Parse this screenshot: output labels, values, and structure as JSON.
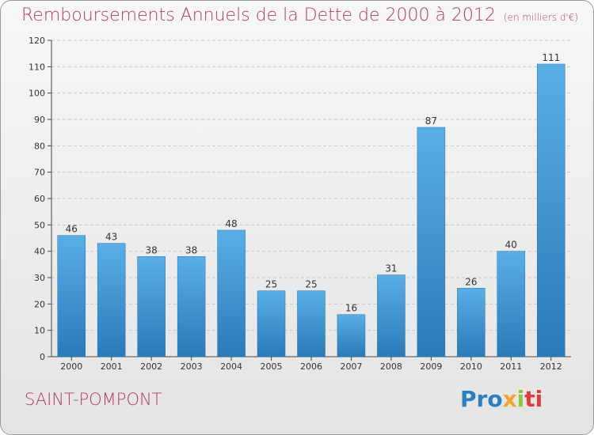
{
  "title": "Remboursements Annuels de la Dette de 2000 à 2012",
  "title_unit": "(en milliers d'€)",
  "town": "SAINT-POMPONT",
  "logo": {
    "p1": "Pro",
    "p2": "x",
    "p3": "i",
    "p4": "ti"
  },
  "chart_data": {
    "type": "bar",
    "categories": [
      "2000",
      "2001",
      "2002",
      "2003",
      "2004",
      "2005",
      "2006",
      "2007",
      "2008",
      "2009",
      "2010",
      "2011",
      "2012"
    ],
    "values": [
      46,
      43,
      38,
      38,
      48,
      25,
      25,
      16,
      31,
      87,
      26,
      40,
      111
    ],
    "data_labels": [
      "46",
      "43",
      "38",
      "38",
      "48",
      "25",
      "25",
      "16",
      "31",
      "87",
      "26",
      "40",
      "111"
    ],
    "ylim": [
      0,
      120
    ],
    "yticks": [
      0,
      10,
      20,
      30,
      40,
      50,
      60,
      70,
      80,
      90,
      100,
      110,
      120
    ],
    "grid": "horizontal-dashed",
    "bar_color": "#3d93d4"
  }
}
